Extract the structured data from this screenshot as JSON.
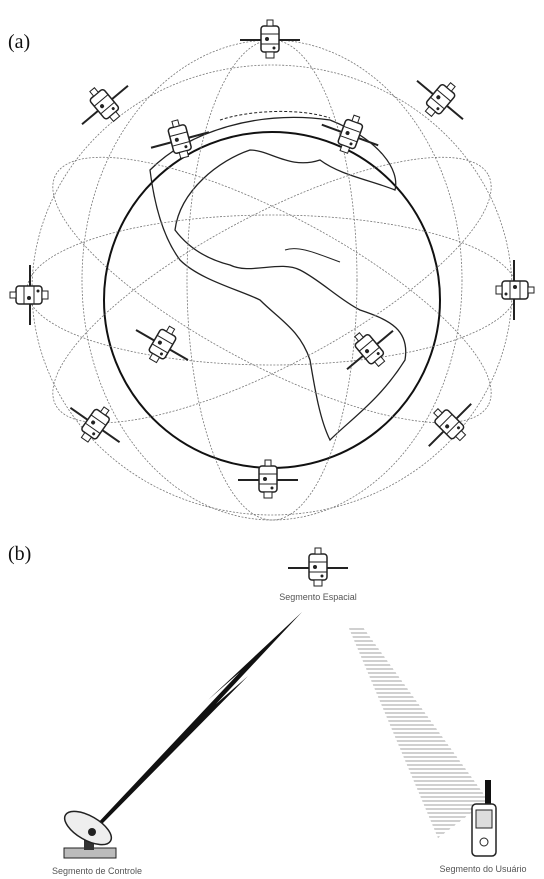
{
  "panel_a": {
    "label": "(a)"
  },
  "panel_b": {
    "label": "(b)",
    "space_segment": "Segmento Espacial",
    "control_segment": "Segmento de Controle",
    "user_segment": "Segmento do Usuário"
  }
}
